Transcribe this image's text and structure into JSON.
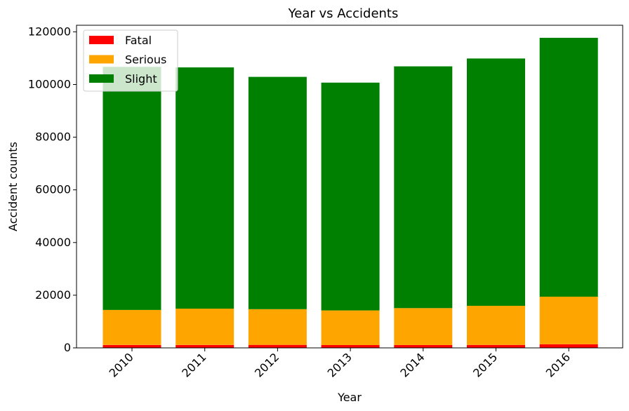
{
  "chart_data": {
    "type": "bar",
    "stacked": true,
    "title": "Year vs Accidents",
    "xlabel": "Year",
    "ylabel": "Accident counts",
    "categories": [
      "2010",
      "2011",
      "2012",
      "2013",
      "2014",
      "2015",
      "2016"
    ],
    "series": [
      {
        "name": "Fatal",
        "color": "#ff0000",
        "values": [
          1100,
          1100,
          1150,
          1070,
          1090,
          1130,
          1390
        ]
      },
      {
        "name": "Serious",
        "color": "#ffa500",
        "values": [
          13300,
          13800,
          13550,
          13150,
          14000,
          14850,
          18050
        ]
      },
      {
        "name": "Slight",
        "color": "#008000",
        "values": [
          92300,
          91600,
          88200,
          86500,
          91800,
          93900,
          98300
        ]
      }
    ],
    "ylim": [
      0,
      122500
    ],
    "yticks": [
      0,
      20000,
      40000,
      60000,
      80000,
      100000,
      120000
    ],
    "legend": "top-left",
    "grid": false
  }
}
